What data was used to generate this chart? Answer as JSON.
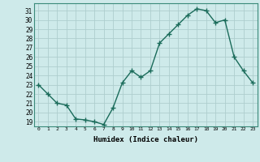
{
  "x": [
    0,
    1,
    2,
    3,
    4,
    5,
    6,
    7,
    8,
    9,
    10,
    11,
    12,
    13,
    14,
    15,
    16,
    17,
    18,
    19,
    20,
    21,
    22,
    23
  ],
  "y": [
    23,
    22,
    21,
    20.8,
    19.3,
    19.2,
    19.0,
    18.7,
    20.5,
    23.2,
    24.5,
    23.8,
    24.5,
    27.5,
    28.5,
    29.5,
    30.5,
    31.2,
    31.0,
    29.7,
    30.0,
    26.0,
    24.5,
    23.2
  ],
  "line_color": "#1a6b5a",
  "marker_color": "#1a6b5a",
  "bg_color": "#ceeaea",
  "grid_color": "#aecece",
  "xlabel": "Humidex (Indice chaleur)",
  "ylim": [
    18.5,
    31.8
  ],
  "yticks": [
    19,
    20,
    21,
    22,
    23,
    24,
    25,
    26,
    27,
    28,
    29,
    30,
    31
  ],
  "xlim": [
    -0.5,
    23.5
  ],
  "xticks": [
    0,
    1,
    2,
    3,
    4,
    5,
    6,
    7,
    8,
    9,
    10,
    11,
    12,
    13,
    14,
    15,
    16,
    17,
    18,
    19,
    20,
    21,
    22,
    23
  ]
}
